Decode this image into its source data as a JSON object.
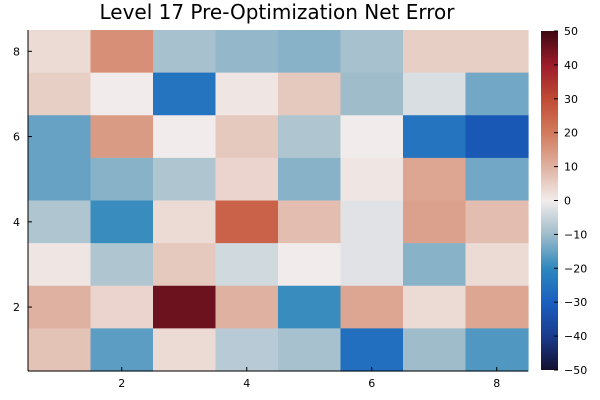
{
  "chart_data": {
    "type": "heatmap",
    "title": "Level 17 Pre-Optimization Net Error",
    "xlabel": "",
    "ylabel": "",
    "x": [
      1,
      2,
      3,
      4,
      5,
      6,
      7,
      8
    ],
    "y": [
      1,
      2,
      3,
      4,
      5,
      6,
      7,
      8
    ],
    "x_ticks": [
      "2",
      "4",
      "6",
      "8"
    ],
    "y_ticks": [
      "2",
      "4",
      "6",
      "8"
    ],
    "colorbar": {
      "min": -50,
      "max": 50,
      "ticks": [
        "50",
        "40",
        "30",
        "20",
        "10",
        "0",
        "−10",
        "−20",
        "−30",
        "−40",
        "−50"
      ],
      "colormap": "balance",
      "stops": [
        [
          -50,
          "#13102e"
        ],
        [
          -40,
          "#1a3b8e"
        ],
        [
          -30,
          "#1a5fc0"
        ],
        [
          -20,
          "#2e88bd"
        ],
        [
          -10,
          "#9fbccb"
        ],
        [
          0,
          "#f1eceb"
        ],
        [
          10,
          "#dfb1a0"
        ],
        [
          20,
          "#d27a5c"
        ],
        [
          30,
          "#c04a35"
        ],
        [
          40,
          "#9c1b2a"
        ],
        [
          50,
          "#3c0912"
        ]
      ]
    },
    "grid": false,
    "values": [
      [
        3,
        16,
        -9,
        -11,
        -12,
        -9,
        5,
        5
      ],
      [
        5,
        0,
        -25,
        1,
        6,
        -10,
        -3,
        -14
      ],
      [
        -15,
        14,
        0,
        6,
        -8,
        0,
        -25,
        -32
      ],
      [
        -15,
        -12,
        -8,
        4,
        -12,
        1,
        12,
        -14
      ],
      [
        -8,
        -19,
        3,
        25,
        8,
        -2,
        13,
        8
      ],
      [
        1,
        -8,
        6,
        -4,
        0,
        -2,
        -12,
        3
      ],
      [
        10,
        4,
        45,
        10,
        -19,
        12,
        3,
        12
      ],
      [
        7,
        -16,
        3,
        -7,
        -9,
        -26,
        -10,
        -17
      ]
    ]
  }
}
